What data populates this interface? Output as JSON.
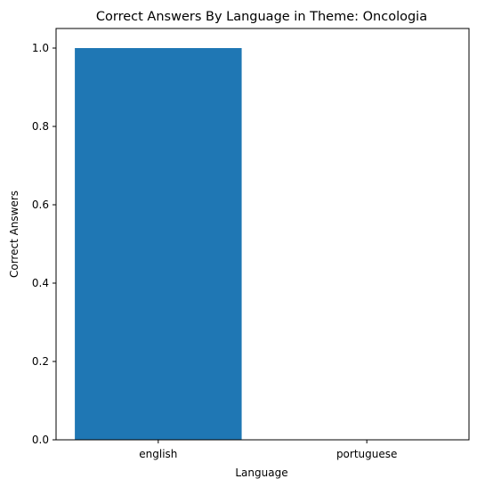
{
  "chart_data": {
    "type": "bar",
    "title": "Correct Answers By Language in Theme: Oncologia",
    "xlabel": "Language",
    "ylabel": "Correct Answers",
    "categories": [
      "english",
      "portuguese"
    ],
    "values": [
      1.0,
      0.0
    ],
    "ylim": [
      0,
      1.05
    ],
    "yticks": [
      0.0,
      0.2,
      0.4,
      0.6,
      0.8,
      1.0
    ],
    "ytick_labels": [
      "0.0",
      "0.2",
      "0.4",
      "0.6",
      "0.8",
      "1.0"
    ],
    "grid": false,
    "legend": "none",
    "bar_color": "#1f77b4"
  }
}
